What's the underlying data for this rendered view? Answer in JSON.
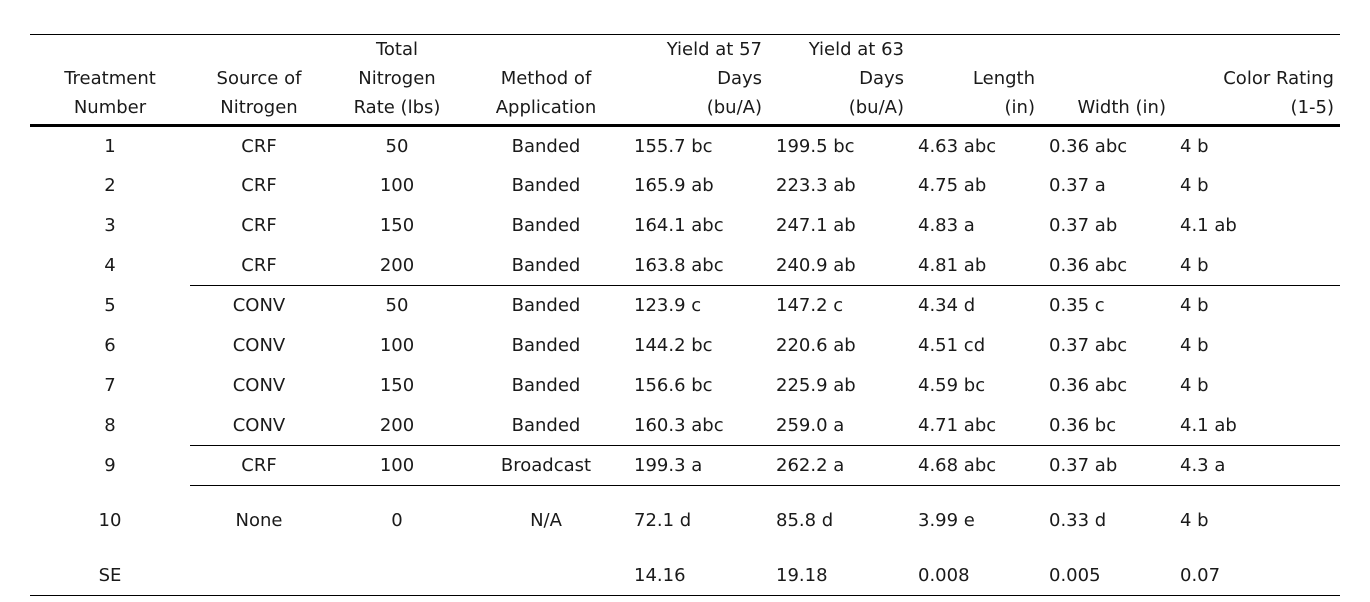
{
  "table": {
    "headers": [
      "Treatment\nNumber",
      "Source of\nNitrogen",
      "Total\nNitrogen\nRate (lbs)",
      "Method of\nApplication",
      "Yield at 57\nDays\n(bu/A)",
      "Yield at 63\nDays\n(bu/A)",
      "Length\n(in)",
      "Width (in)",
      "Color Rating\n(1-5)"
    ],
    "rows": [
      [
        "1",
        "CRF",
        "50",
        "Banded",
        "155.7 bc",
        "199.5 bc",
        "4.63 abc",
        "0.36 abc",
        "4 b"
      ],
      [
        "2",
        "CRF",
        "100",
        "Banded",
        "165.9 ab",
        "223.3 ab",
        "4.75 ab",
        "0.37 a",
        "4 b"
      ],
      [
        "3",
        "CRF",
        "150",
        "Banded",
        "164.1 abc",
        "247.1 ab",
        "4.83 a",
        "0.37 ab",
        "4.1 ab"
      ],
      [
        "4",
        "CRF",
        "200",
        "Banded",
        "163.8 abc",
        "240.9 ab",
        "4.81 ab",
        "0.36 abc",
        "4 b"
      ],
      [
        "5",
        "CONV",
        "50",
        "Banded",
        "123.9 c",
        "147.2 c",
        "4.34 d",
        "0.35 c",
        "4 b"
      ],
      [
        "6",
        "CONV",
        "100",
        "Banded",
        "144.2 bc",
        "220.6 ab",
        "4.51 cd",
        "0.37 abc",
        "4 b"
      ],
      [
        "7",
        "CONV",
        "150",
        "Banded",
        "156.6 bc",
        "225.9 ab",
        "4.59 bc",
        "0.36 abc",
        "4 b"
      ],
      [
        "8",
        "CONV",
        "200",
        "Banded",
        "160.3 abc",
        "259.0 a",
        "4.71 abc",
        "0.36 bc",
        "4.1 ab"
      ],
      [
        "9",
        "CRF",
        "100",
        "Broadcast",
        "199.3 a",
        "262.2 a",
        "4.68 abc",
        "0.37 ab",
        "4.3 a"
      ],
      [
        "10",
        "None",
        "0",
        "N/A",
        "72.1 d",
        "85.8 d",
        "3.99 e",
        "0.33 d",
        "4 b"
      ],
      [
        "SE",
        "",
        "",
        "",
        "14.16",
        "19.18",
        "0.008",
        "0.005",
        "0.07"
      ]
    ]
  }
}
